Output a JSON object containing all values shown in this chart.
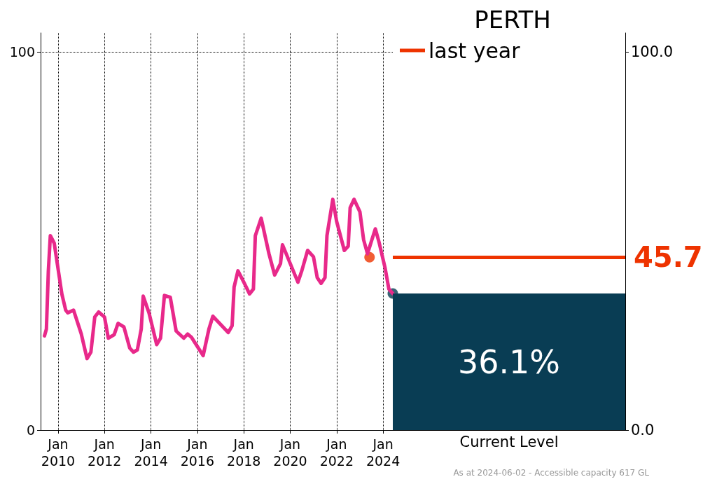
{
  "chart_data": [
    {
      "type": "line",
      "ylim": [
        0,
        105
      ],
      "yticks": [
        0,
        100
      ],
      "xlim": [
        "2009-04-01",
        "2024-06-02"
      ],
      "xticks": [
        {
          "value": "2010-01",
          "label": "Jan 2010"
        },
        {
          "value": "2012-01",
          "label": "Jan 2012"
        },
        {
          "value": "2014-01",
          "label": "Jan 2014"
        },
        {
          "value": "2016-01",
          "label": "Jan 2016"
        },
        {
          "value": "2018-01",
          "label": "Jan 2018"
        },
        {
          "value": "2020-01",
          "label": "Jan 2020"
        },
        {
          "value": "2022-01",
          "label": "Jan 2022"
        },
        {
          "value": "2024-01",
          "label": "Jan 2024"
        }
      ],
      "grid": true,
      "series": [
        {
          "type": "line",
          "color": "#e8298a",
          "x": [
            "2009-06",
            "2009-07",
            "2009-08",
            "2009-09",
            "2009-11",
            "2010-03",
            "2010-05",
            "2010-06",
            "2010-09",
            "2011-01",
            "2011-04",
            "2011-06",
            "2011-08",
            "2011-10",
            "2012-01",
            "2012-03",
            "2012-06",
            "2012-08",
            "2012-11",
            "2013-02",
            "2013-04",
            "2013-06",
            "2013-08",
            "2013-09",
            "2013-12",
            "2014-04",
            "2014-06",
            "2014-08",
            "2014-11",
            "2015-02",
            "2015-06",
            "2015-08",
            "2015-10",
            "2016-04",
            "2016-07",
            "2016-09",
            "2017-05",
            "2017-07",
            "2017-08",
            "2017-10",
            "2018-01",
            "2018-04",
            "2018-06",
            "2018-07",
            "2018-10",
            "2019-02",
            "2019-05",
            "2019-08",
            "2019-09",
            "2019-12",
            "2020-05",
            "2020-07",
            "2020-10",
            "2021-01",
            "2021-03",
            "2021-05",
            "2021-07",
            "2021-08",
            "2021-11",
            "2022-01",
            "2022-05",
            "2022-07",
            "2022-08",
            "2022-10",
            "2023-01",
            "2023-03",
            "2023-05",
            "2023-07",
            "2023-09",
            "2023-11",
            "2024-02",
            "2024-04",
            "2024-06-02"
          ],
          "values": [
            24.9,
            26.7,
            42.1,
            51.4,
            49.4,
            36,
            31.7,
            31,
            31.7,
            25.4,
            18.9,
            20.6,
            29.9,
            31.2,
            29.9,
            24.3,
            25.2,
            28.2,
            27.3,
            21.7,
            20.6,
            21.2,
            26.7,
            35.4,
            31,
            22.6,
            24.3,
            35.6,
            35.1,
            26.2,
            24.3,
            25.4,
            24.5,
            19.7,
            26.7,
            30.1,
            25.8,
            27.6,
            37.8,
            42.1,
            39.1,
            36,
            37.3,
            51.4,
            56,
            46.6,
            41,
            44,
            49,
            45.3,
            39.1,
            42.1,
            47.5,
            45.8,
            40.3,
            38.8,
            40.3,
            51.4,
            61,
            55.1,
            47.5,
            48.6,
            58.8,
            61,
            57.7,
            50.3,
            46.6,
            49.9,
            53.2,
            49.5,
            42.9,
            37.3,
            36.1
          ]
        },
        {
          "type": "scatter",
          "color": "#ee3300",
          "x": [
            "2023-06-02"
          ],
          "values": [
            45.7
          ]
        },
        {
          "type": "scatter",
          "color": "#093d54",
          "x": [
            "2024-06-02"
          ],
          "values": [
            36.1
          ]
        }
      ]
    },
    {
      "type": "bar",
      "title": "PERTH",
      "categories": [
        "Current Level"
      ],
      "values": [
        36.1
      ],
      "value_labels": [
        "36.1%"
      ],
      "color": "#093d54",
      "ylim": [
        0,
        105
      ],
      "yticks": [
        {
          "value": 0,
          "label": "0.0"
        },
        {
          "value": 100,
          "label": "100.0"
        }
      ],
      "ref_lines": [
        {
          "axis": "y",
          "value": 45.7,
          "label": "last year",
          "color": "#ee3300"
        }
      ],
      "legend": "top left",
      "annotations": [
        "45.7",
        "As at 2024-06-02 - Accessible capacity 617 GL"
      ]
    }
  ]
}
